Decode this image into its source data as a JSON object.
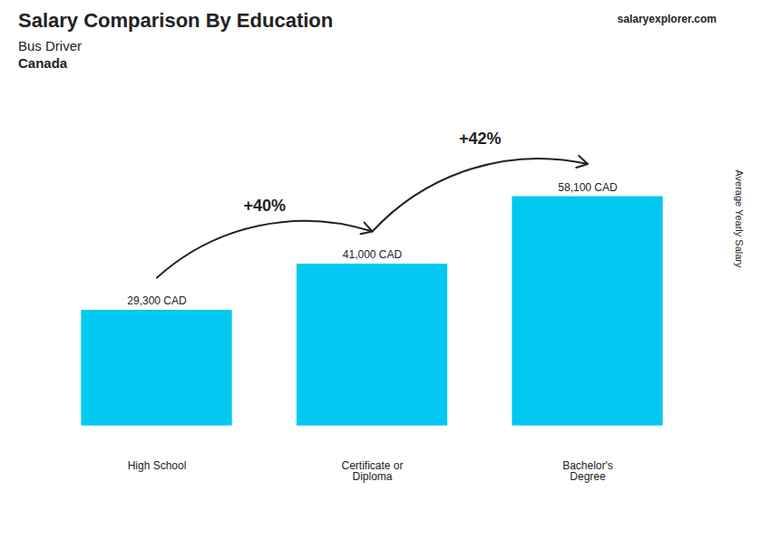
{
  "chart_data": {
    "type": "bar",
    "title": "Salary Comparison By Education",
    "subtitle": [
      "Bus Driver",
      "Canada"
    ],
    "source": [
      "salary",
      "explorer.com"
    ],
    "ylabel": "Average Yearly Salary",
    "categories": [
      "High School",
      "Certificate or\nDiploma",
      "Bachelor's\nDegree"
    ],
    "values": [
      29300,
      41000,
      58100
    ],
    "value_labels": [
      "29,300 CAD",
      "41,000 CAD",
      "58,100 CAD"
    ],
    "data_labels": true,
    "annotations": [
      "+40%",
      "+42%"
    ],
    "color": "#00C8F0",
    "ylim": [
      -6972,
      87150
    ],
    "tick_labels": "x"
  }
}
